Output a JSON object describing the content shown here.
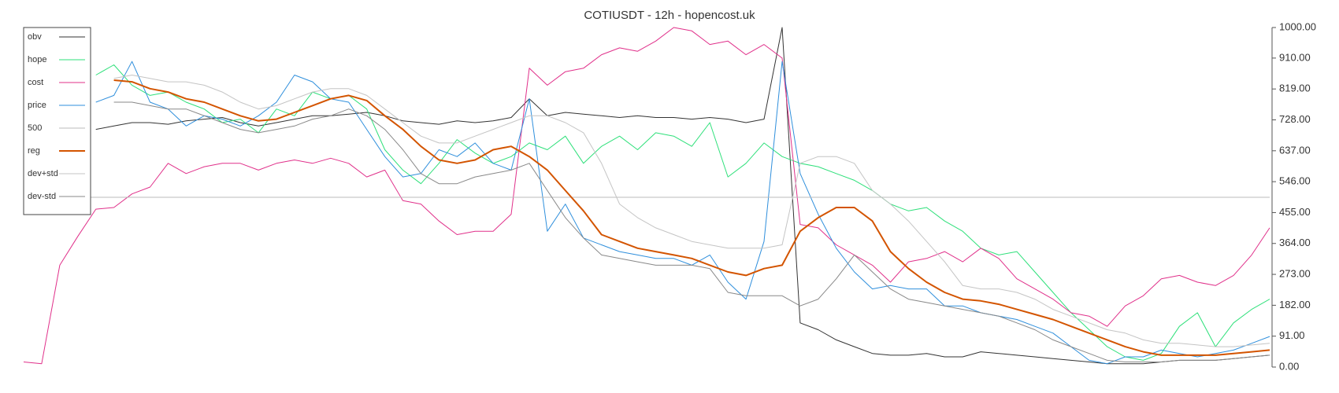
{
  "chart_data": {
    "type": "line",
    "title": "COTIUSDT - 12h - hopencost.uk",
    "legend": "top-left",
    "y_axis_side": "right",
    "ylim": [
      0,
      1000
    ],
    "yticks": [
      {
        "value": 0,
        "label": "0.00"
      },
      {
        "value": 91,
        "label": "91.00"
      },
      {
        "value": 182,
        "label": "182.00"
      },
      {
        "value": 273,
        "label": "273.00"
      },
      {
        "value": 364,
        "label": "364.00"
      },
      {
        "value": 455,
        "label": "455.00"
      },
      {
        "value": 546,
        "label": "546.00"
      },
      {
        "value": 637,
        "label": "637.00"
      },
      {
        "value": 728,
        "label": "728.00"
      },
      {
        "value": 819,
        "label": "819.00"
      },
      {
        "value": 910,
        "label": "910.00"
      },
      {
        "value": 1000,
        "label": "1000.00"
      }
    ],
    "series": [
      {
        "name": "obv",
        "color": "#333333",
        "width": 1,
        "values": [
          null,
          null,
          null,
          null,
          700,
          710,
          720,
          720,
          715,
          725,
          730,
          735,
          720,
          710,
          720,
          730,
          740,
          740,
          745,
          750,
          740,
          725,
          720,
          715,
          725,
          720,
          725,
          735,
          790,
          740,
          750,
          745,
          740,
          735,
          740,
          735,
          735,
          730,
          735,
          730,
          720,
          730,
          1000,
          130,
          110,
          80,
          60,
          40,
          35,
          35,
          40,
          30,
          30,
          45,
          40,
          35,
          30,
          25,
          20,
          15,
          10,
          10,
          10,
          15,
          20,
          20,
          20,
          25,
          30,
          35
        ]
      },
      {
        "name": "hope",
        "color": "#2ee07a",
        "width": 1,
        "values": [
          null,
          null,
          null,
          null,
          860,
          890,
          830,
          800,
          810,
          780,
          760,
          720,
          730,
          690,
          760,
          740,
          810,
          790,
          800,
          760,
          640,
          580,
          540,
          600,
          670,
          630,
          600,
          620,
          660,
          640,
          680,
          600,
          650,
          680,
          640,
          690,
          680,
          650,
          720,
          560,
          600,
          660,
          620,
          600,
          590,
          570,
          550,
          520,
          480,
          460,
          470,
          430,
          400,
          350,
          330,
          340,
          280,
          220,
          160,
          110,
          60,
          30,
          20,
          40,
          120,
          160,
          60,
          130,
          170,
          200
        ]
      },
      {
        "name": "cost",
        "color": "#e0308a",
        "width": 1,
        "values": [
          15,
          10,
          300,
          385,
          465,
          470,
          510,
          530,
          600,
          570,
          590,
          600,
          600,
          580,
          600,
          610,
          600,
          615,
          600,
          560,
          580,
          490,
          480,
          430,
          390,
          400,
          400,
          450,
          880,
          830,
          870,
          880,
          920,
          940,
          930,
          960,
          1000,
          990,
          950,
          960,
          920,
          950,
          910,
          420,
          410,
          360,
          330,
          300,
          250,
          310,
          320,
          340,
          310,
          350,
          320,
          260,
          230,
          200,
          160,
          150,
          120,
          180,
          210,
          260,
          270,
          250,
          240,
          270,
          330,
          410
        ]
      },
      {
        "name": "price",
        "color": "#2f8fdc",
        "width": 1,
        "values": [
          null,
          null,
          null,
          null,
          780,
          800,
          900,
          780,
          760,
          710,
          740,
          730,
          710,
          740,
          780,
          860,
          840,
          790,
          780,
          700,
          620,
          560,
          570,
          640,
          620,
          660,
          600,
          580,
          790,
          400,
          480,
          380,
          360,
          340,
          330,
          320,
          320,
          300,
          330,
          250,
          200,
          370,
          900,
          570,
          450,
          350,
          280,
          230,
          240,
          230,
          230,
          180,
          180,
          160,
          150,
          140,
          120,
          100,
          60,
          20,
          10,
          30,
          30,
          50,
          40,
          30,
          40,
          50,
          70,
          90
        ]
      },
      {
        "name": "500",
        "color": "#bbbbbb",
        "width": 1,
        "values": [
          500,
          500,
          500,
          500,
          500,
          500,
          500,
          500,
          500,
          500,
          500,
          500,
          500,
          500,
          500,
          500,
          500,
          500,
          500,
          500,
          500,
          500,
          500,
          500,
          500,
          500,
          500,
          500,
          500,
          500,
          500,
          500,
          500,
          500,
          500,
          500,
          500,
          500,
          500,
          500,
          500,
          500,
          500,
          500,
          500,
          500,
          500,
          500,
          500,
          500,
          500,
          500,
          500,
          500,
          500,
          500,
          500,
          500,
          500,
          500,
          500,
          500,
          500,
          500,
          500,
          500,
          500,
          500,
          500,
          500
        ]
      },
      {
        "name": "reg",
        "color": "#d35400",
        "width": 2,
        "values": [
          null,
          null,
          null,
          null,
          null,
          845,
          840,
          820,
          810,
          790,
          780,
          760,
          740,
          725,
          730,
          750,
          770,
          790,
          800,
          785,
          740,
          700,
          650,
          610,
          600,
          610,
          640,
          650,
          620,
          580,
          520,
          460,
          390,
          370,
          350,
          340,
          330,
          320,
          300,
          280,
          270,
          290,
          300,
          400,
          440,
          470,
          470,
          430,
          340,
          290,
          250,
          220,
          200,
          195,
          185,
          170,
          155,
          140,
          120,
          100,
          80,
          60,
          45,
          35,
          35,
          35,
          35,
          40,
          45,
          50
        ]
      },
      {
        "name": "dev+std",
        "color": "#c4c4c4",
        "width": 1,
        "values": [
          null,
          null,
          null,
          null,
          null,
          850,
          860,
          850,
          840,
          840,
          830,
          810,
          780,
          760,
          770,
          790,
          810,
          820,
          820,
          800,
          760,
          720,
          680,
          660,
          660,
          680,
          700,
          720,
          740,
          740,
          720,
          690,
          600,
          480,
          440,
          410,
          390,
          370,
          360,
          350,
          350,
          350,
          360,
          600,
          620,
          620,
          600,
          520,
          480,
          430,
          370,
          310,
          240,
          230,
          230,
          220,
          200,
          170,
          150,
          130,
          110,
          100,
          80,
          70,
          70,
          65,
          60,
          60,
          65,
          70
        ]
      },
      {
        "name": "dev-std",
        "color": "#888888",
        "width": 1,
        "values": [
          null,
          null,
          null,
          null,
          null,
          780,
          780,
          770,
          760,
          760,
          740,
          720,
          700,
          690,
          700,
          710,
          730,
          740,
          760,
          740,
          700,
          640,
          570,
          540,
          540,
          560,
          570,
          580,
          600,
          520,
          440,
          380,
          330,
          320,
          310,
          300,
          300,
          300,
          290,
          220,
          210,
          210,
          210,
          180,
          200,
          260,
          330,
          280,
          230,
          200,
          190,
          180,
          170,
          160,
          150,
          130,
          110,
          80,
          60,
          40,
          20,
          15,
          15,
          15,
          20,
          20,
          20,
          25,
          30,
          35
        ]
      }
    ]
  }
}
